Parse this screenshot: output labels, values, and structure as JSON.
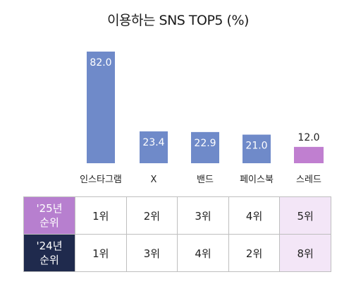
{
  "title": "이용하는 SNS TOP5 (%)",
  "colors": {
    "bar": "#6f8ac9",
    "highlight_bar": "#c07fd0",
    "row25": "#b77fcf",
    "row24": "#1f2a4d",
    "highlight_cell": "#f3e6f7"
  },
  "chart_data": {
    "type": "bar",
    "categories": [
      "인스타그램",
      "X",
      "밴드",
      "페이스북",
      "스레드"
    ],
    "values": [
      82.0,
      23.4,
      22.9,
      21.0,
      12.0
    ],
    "value_labels": [
      "82.0",
      "23.4",
      "22.9",
      "21.0",
      "12.0"
    ],
    "highlight_index": 4,
    "title": "이용하는 SNS TOP5 (%)",
    "xlabel": "",
    "ylabel": "",
    "ylim": [
      0,
      82.0
    ]
  },
  "rank_table": {
    "rows": [
      {
        "label_line1": "'25년",
        "label_line2": "순위",
        "cells": [
          "1위",
          "2위",
          "3위",
          "4위",
          "5위"
        ]
      },
      {
        "label_line1": "'24년",
        "label_line2": "순위",
        "cells": [
          "1위",
          "3위",
          "4위",
          "2위",
          "8위"
        ]
      }
    ]
  }
}
